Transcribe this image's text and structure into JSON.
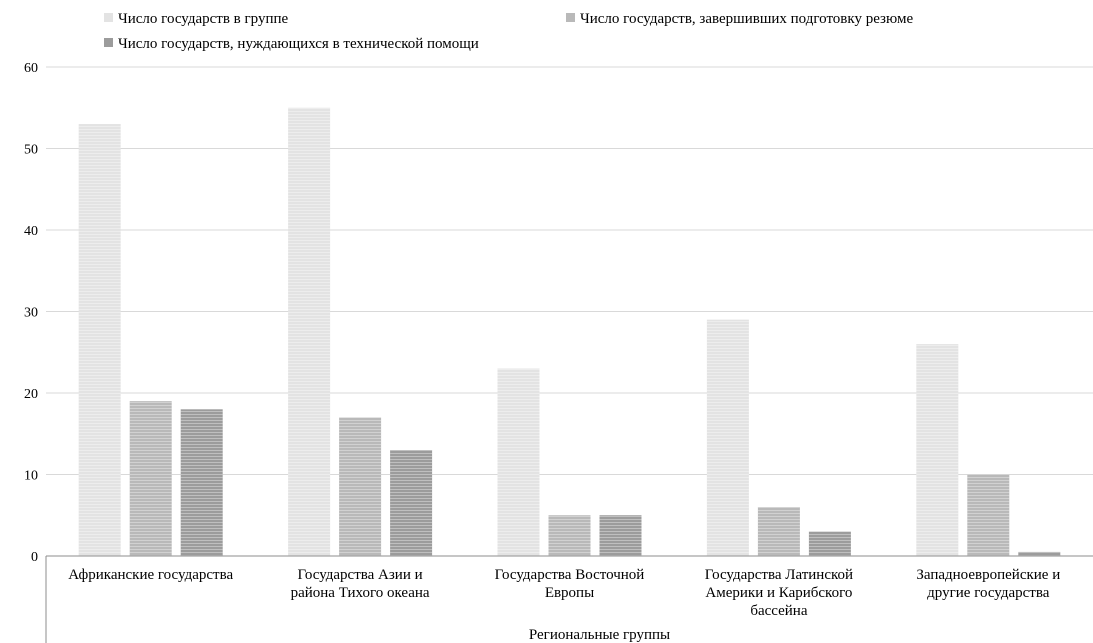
{
  "chart_data": {
    "type": "bar",
    "xlabel": "Региональные группы",
    "ylabel": "",
    "ylim": [
      0,
      60
    ],
    "yticks": [
      0,
      10,
      20,
      30,
      40,
      50,
      60
    ],
    "grid": true,
    "legend_position": "top",
    "categories": [
      [
        "Африканские государства"
      ],
      [
        "Государства Азии и",
        "района Тихого океана"
      ],
      [
        "Государства Восточной",
        "Европы"
      ],
      [
        "Государства Латинской",
        "Америки и Карибского",
        "бассейна"
      ],
      [
        "Западноевропейские и",
        "другие государства"
      ]
    ],
    "series": [
      {
        "name": "Число государств в группе",
        "color": "#e3e3e3",
        "values": [
          53,
          55,
          23,
          29,
          26
        ]
      },
      {
        "name": "Число государств, завершивших подготовку резюме",
        "color": "#b9b9b9",
        "values": [
          19,
          17,
          5,
          6,
          10
        ]
      },
      {
        "name": "Число государств, нуждающихся в технической помощи",
        "color": "#9c9c9c",
        "values": [
          18,
          13,
          5,
          3,
          0.5
        ]
      }
    ]
  }
}
